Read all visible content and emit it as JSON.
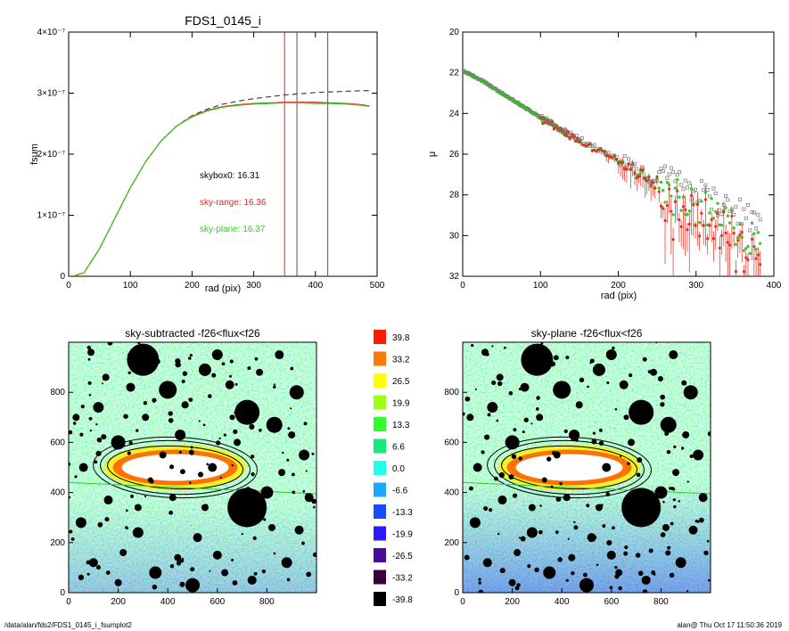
{
  "colors": {
    "red": "#e8271c",
    "green": "#33cc22",
    "grey": "#555555",
    "black": "#000000"
  },
  "footer": {
    "left": "/data/alan/fds2/FDS1_0145_i_fsumplot2",
    "right": "alan@  Thu Oct 17 11:50:36 2019"
  },
  "chart_data": [
    {
      "type": "line",
      "title": "FDS1_0145_i",
      "xlabel": "rad (pix)",
      "ylabel": "fsum",
      "xlim": [
        0,
        500
      ],
      "ylim": [
        0,
        4e-07
      ],
      "x_ticks": [
        "0",
        "100",
        "200",
        "300",
        "400",
        "500"
      ],
      "y_ticks": [
        "0",
        "1×10⁻⁷",
        "2×10⁻⁷",
        "3×10⁻⁷",
        "4×10⁻⁷"
      ],
      "annotations": [
        {
          "text": "skybox0: 16.31",
          "color": "#000000"
        },
        {
          "text": "sky-range: 16.36",
          "color": "#e8271c"
        },
        {
          "text": "sky-plane: 16.37",
          "color": "#33cc22"
        }
      ],
      "vlines": [
        {
          "x": 350,
          "color": "#e8271c"
        },
        {
          "x": 370,
          "color": "#555555"
        },
        {
          "x": 420,
          "color": "#555555"
        }
      ],
      "x": [
        0,
        10,
        25,
        50,
        75,
        100,
        125,
        150,
        175,
        200,
        225,
        250,
        275,
        300,
        325,
        350,
        375,
        400,
        425,
        450,
        475,
        487
      ],
      "series": [
        {
          "style": "dashed",
          "color": "#444444",
          "values": [
            0,
            0.01,
            0.06,
            0.45,
            0.95,
            1.45,
            1.88,
            2.22,
            2.46,
            2.63,
            2.74,
            2.82,
            2.87,
            2.91,
            2.94,
            2.97,
            2.99,
            3.01,
            3.02,
            3.03,
            3.04,
            3.04
          ]
        },
        {
          "style": "solid",
          "color": "#e8271c",
          "values": [
            0,
            0.01,
            0.06,
            0.45,
            0.95,
            1.45,
            1.88,
            2.22,
            2.46,
            2.62,
            2.72,
            2.78,
            2.81,
            2.83,
            2.84,
            2.85,
            2.85,
            2.85,
            2.84,
            2.83,
            2.81,
            2.79
          ]
        },
        {
          "style": "solid",
          "color": "#33cc22",
          "values": [
            0,
            0.01,
            0.06,
            0.45,
            0.95,
            1.45,
            1.88,
            2.22,
            2.46,
            2.61,
            2.71,
            2.77,
            2.8,
            2.82,
            2.83,
            2.84,
            2.84,
            2.83,
            2.83,
            2.82,
            2.8,
            2.78
          ]
        }
      ],
      "y_scale_note": "values ×10⁻⁷"
    },
    {
      "type": "scatter",
      "title": "",
      "xlabel": "rad (pix)",
      "ylabel": "μ",
      "xlim": [
        0,
        400
      ],
      "ylim": [
        32,
        20
      ],
      "x_ticks": [
        "0",
        "100",
        "200",
        "300",
        "400"
      ],
      "y_ticks": [
        "20",
        "22",
        "24",
        "26",
        "28",
        "30",
        "32"
      ],
      "trend": {
        "x": [
          0,
          25,
          50,
          75,
          100,
          125,
          150,
          175,
          200,
          225,
          250,
          275,
          300
        ],
        "y": [
          21.9,
          22.4,
          23.0,
          23.6,
          24.2,
          24.8,
          25.3,
          25.8,
          26.3,
          26.9,
          27.4,
          27.9,
          28.4
        ]
      },
      "series": [
        {
          "name": "",
          "color": "#e8271c",
          "marker": "square"
        },
        {
          "name": "",
          "color": "#33cc22",
          "marker": "dot"
        },
        {
          "name": "",
          "color": "#777777",
          "marker": "open-square"
        }
      ]
    },
    {
      "type": "heatmap",
      "title": "sky-subtracted -f26<flux<f26",
      "xlim": [
        0,
        1000
      ],
      "ylim": [
        0,
        1000
      ],
      "x_ticks": [
        "0",
        "200",
        "400",
        "600",
        "800"
      ],
      "y_ticks": [
        "0",
        "200",
        "400",
        "600",
        "800"
      ]
    },
    {
      "type": "heatmap",
      "title": "sky-plane -f26<flux<f26",
      "xlim": [
        0,
        1000
      ],
      "ylim": [
        0,
        1000
      ],
      "x_ticks": [
        "0",
        "200",
        "400",
        "600",
        "800"
      ],
      "y_ticks": [
        "0",
        "200",
        "400",
        "600",
        "800"
      ]
    }
  ],
  "colorbar": {
    "labels": [
      "39.8",
      "33.2",
      "26.5",
      "19.9",
      "13.3",
      "6.6",
      "0.0",
      "-6.6",
      "-13.3",
      "-19.9",
      "-26.5",
      "-33.2",
      "-39.8"
    ],
    "colors": [
      "#ff1a00",
      "#ff7a00",
      "#ffff00",
      "#9cff1a",
      "#2cff2c",
      "#18e87a",
      "#22ffee",
      "#1aa8ff",
      "#1a4aff",
      "#2a1aff",
      "#4a0aa0",
      "#3a003a",
      "#000000"
    ]
  },
  "stars": [
    [
      0.15,
      0.14,
      4
    ],
    [
      0.3,
      0.07,
      18
    ],
    [
      0.4,
      0.19,
      10
    ],
    [
      0.55,
      0.11,
      7
    ],
    [
      0.72,
      0.28,
      14
    ],
    [
      0.6,
      0.05,
      6
    ],
    [
      0.85,
      0.05,
      5
    ],
    [
      0.92,
      0.2,
      8
    ],
    [
      0.06,
      0.5,
      5
    ],
    [
      0.2,
      0.4,
      8
    ],
    [
      0.45,
      0.37,
      6
    ],
    [
      0.83,
      0.33,
      9
    ],
    [
      0.95,
      0.45,
      6
    ],
    [
      0.72,
      0.66,
      22
    ],
    [
      0.28,
      0.76,
      6
    ],
    [
      0.1,
      0.88,
      5
    ],
    [
      0.35,
      0.92,
      7
    ],
    [
      0.6,
      0.85,
      5
    ],
    [
      0.88,
      0.88,
      6
    ],
    [
      0.2,
      0.96,
      4
    ],
    [
      0.5,
      0.97,
      8
    ],
    [
      0.8,
      0.6,
      7
    ],
    [
      0.12,
      0.26,
      6
    ],
    [
      0.65,
      0.17,
      5
    ],
    [
      0.42,
      0.62,
      4
    ],
    [
      0.05,
      0.72,
      6
    ],
    [
      0.93,
      0.75,
      5
    ],
    [
      0.58,
      0.5,
      5
    ],
    [
      0.33,
      0.55,
      3
    ],
    [
      0.68,
      0.4,
      4
    ],
    [
      0.25,
      0.18,
      5
    ],
    [
      0.77,
      0.12,
      4
    ],
    [
      0.52,
      0.78,
      5
    ],
    [
      0.03,
      0.3,
      4
    ],
    [
      0.97,
      0.62,
      5
    ],
    [
      0.38,
      0.45,
      4
    ],
    [
      0.86,
      0.52,
      4
    ],
    [
      0.16,
      0.63,
      5
    ],
    [
      0.47,
      0.25,
      4
    ],
    [
      0.63,
      0.92,
      4
    ],
    [
      0.22,
      0.84,
      4
    ],
    [
      0.74,
      0.95,
      5
    ],
    [
      0.09,
      0.04,
      4
    ],
    [
      0.31,
      0.3,
      4
    ],
    [
      0.9,
      0.37,
      4
    ],
    [
      0.55,
      0.66,
      4
    ],
    [
      0.28,
      0.66,
      4
    ],
    [
      0.82,
      0.74,
      4
    ],
    [
      0.44,
      0.86,
      4
    ],
    [
      0.66,
      0.3,
      3
    ]
  ]
}
